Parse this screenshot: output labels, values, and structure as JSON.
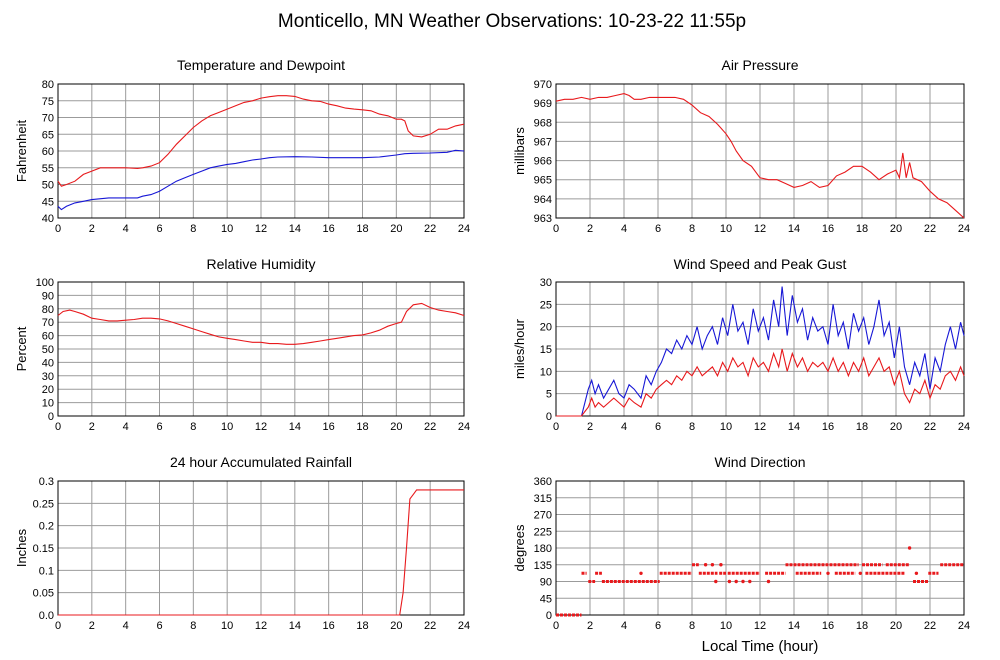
{
  "figure": {
    "title": "Monticello, MN Weather Observations: 10-23-22 11:55p",
    "xlabel": "Local Time (hour)"
  },
  "colors": {
    "red": "#e8191c",
    "blue": "#1717d6",
    "grid": "#9b9b9b",
    "frame": "#000000"
  },
  "chart_data": [
    {
      "id": "temp",
      "type": "line",
      "title": "Temperature and Dewpoint",
      "ylabel": "Fahrenheit",
      "xlim": [
        0,
        24
      ],
      "ylim": [
        40,
        80
      ],
      "xticks": [
        0,
        2,
        4,
        6,
        8,
        10,
        12,
        14,
        16,
        18,
        20,
        22,
        24
      ],
      "yticks": [
        40,
        45,
        50,
        55,
        60,
        65,
        70,
        75,
        80
      ],
      "grid": true,
      "legend": "none",
      "series": [
        {
          "color": "red",
          "x": [
            0,
            0.2,
            0.5,
            1,
            1.5,
            2,
            2.5,
            3,
            4,
            4.7,
            5,
            5.5,
            6,
            6.5,
            7,
            7.5,
            8,
            8.5,
            9,
            9.5,
            10,
            10.5,
            11,
            11.5,
            12,
            12.5,
            13,
            13.5,
            14,
            14.5,
            15,
            15.5,
            16,
            16.5,
            17,
            17.5,
            18,
            18.5,
            19,
            19.5,
            20,
            20.3,
            20.5,
            20.7,
            21,
            21.5,
            22,
            22.5,
            23,
            23.5,
            24
          ],
          "y": [
            51,
            49.5,
            50,
            51,
            53,
            54,
            55,
            55,
            55,
            54.8,
            55,
            55.5,
            56.5,
            59,
            62,
            64.5,
            67,
            69,
            70.5,
            71.5,
            72.5,
            73.5,
            74.5,
            75,
            75.8,
            76.2,
            76.5,
            76.5,
            76.3,
            75.5,
            75,
            74.8,
            74,
            73.5,
            72.8,
            72.5,
            72.3,
            72,
            71,
            70.5,
            69.5,
            69.5,
            69,
            66,
            64.5,
            64.2,
            65,
            66.5,
            66.5,
            67.5,
            68
          ]
        },
        {
          "color": "blue",
          "x": [
            0,
            0.2,
            0.5,
            1,
            1.5,
            2,
            3,
            4,
            4.7,
            5,
            5.5,
            6,
            6.5,
            7,
            7.5,
            8,
            8.5,
            9,
            9.5,
            10,
            10.5,
            11,
            11.5,
            12,
            12.5,
            13,
            14,
            15,
            16,
            17,
            18,
            19,
            20,
            20.5,
            21,
            22,
            23,
            23.5,
            24
          ],
          "y": [
            43.5,
            42.5,
            43.5,
            44.5,
            45,
            45.5,
            46,
            46,
            46,
            46.5,
            47,
            48,
            49.5,
            51,
            52,
            53,
            54,
            55,
            55.5,
            56,
            56.3,
            56.8,
            57.3,
            57.6,
            58,
            58.2,
            58.3,
            58.2,
            58,
            58,
            58,
            58.2,
            58.8,
            59.2,
            59.3,
            59.4,
            59.6,
            60.2,
            60
          ]
        }
      ]
    },
    {
      "id": "pressure",
      "type": "line",
      "title": "Air Pressure",
      "ylabel": "millibars",
      "xlim": [
        0,
        24
      ],
      "ylim": [
        963,
        970
      ],
      "xticks": [
        0,
        2,
        4,
        6,
        8,
        10,
        12,
        14,
        16,
        18,
        20,
        22,
        24
      ],
      "yticks": [
        963,
        964,
        965,
        966,
        967,
        968,
        969,
        970
      ],
      "grid": true,
      "legend": "none",
      "series": [
        {
          "color": "red",
          "x": [
            0,
            0.5,
            1,
            1.5,
            2,
            2.5,
            3,
            3.5,
            4,
            4.3,
            4.6,
            5,
            5.5,
            6,
            6.5,
            7,
            7.5,
            8,
            8.5,
            9,
            9.5,
            10,
            10.3,
            10.6,
            11,
            11.5,
            12,
            12.5,
            13,
            13.5,
            14,
            14.5,
            15,
            15.5,
            16,
            16.5,
            17,
            17.5,
            18,
            18.5,
            19,
            19.5,
            20,
            20.2,
            20.4,
            20.6,
            20.8,
            21,
            21.5,
            22,
            22.5,
            23,
            23.5,
            24
          ],
          "y": [
            969.1,
            969.2,
            969.2,
            969.3,
            969.2,
            969.3,
            969.3,
            969.4,
            969.5,
            969.4,
            969.2,
            969.2,
            969.3,
            969.3,
            969.3,
            969.3,
            969.2,
            968.9,
            968.5,
            968.3,
            967.9,
            967.4,
            967,
            966.5,
            966,
            965.7,
            965.1,
            965,
            965,
            964.8,
            964.6,
            964.7,
            964.9,
            964.6,
            964.7,
            965.2,
            965.4,
            965.7,
            965.7,
            965.4,
            965,
            965.3,
            965.5,
            965.1,
            966.4,
            965.1,
            965.9,
            965.1,
            964.9,
            964.4,
            964,
            963.8,
            963.4,
            963
          ]
        }
      ]
    },
    {
      "id": "rh",
      "type": "line",
      "title": "Relative Humidity",
      "ylabel": "Percent",
      "xlim": [
        0,
        24
      ],
      "ylim": [
        0,
        100
      ],
      "xticks": [
        0,
        2,
        4,
        6,
        8,
        10,
        12,
        14,
        16,
        18,
        20,
        22,
        24
      ],
      "yticks": [
        0,
        10,
        20,
        30,
        40,
        50,
        60,
        70,
        80,
        90,
        100
      ],
      "grid": true,
      "legend": "none",
      "series": [
        {
          "color": "red",
          "x": [
            0,
            0.3,
            0.7,
            1,
            1.5,
            2,
            2.5,
            3,
            3.5,
            4,
            4.5,
            5,
            5.5,
            6,
            6.5,
            7,
            7.5,
            8,
            8.5,
            9,
            9.5,
            10,
            10.5,
            11,
            11.5,
            12,
            12.5,
            13,
            13.5,
            14,
            14.5,
            15,
            15.5,
            16,
            16.5,
            17,
            17.5,
            18,
            18.5,
            19,
            19.5,
            20,
            20.3,
            20.6,
            21,
            21.5,
            22,
            22.5,
            23,
            23.5,
            24
          ],
          "y": [
            75,
            78,
            79,
            78,
            76,
            73,
            72,
            71,
            71,
            71.5,
            72,
            73,
            73,
            72.5,
            71,
            69,
            67,
            65,
            63,
            61,
            59,
            58,
            57,
            56,
            55,
            55,
            54,
            54,
            53.5,
            53.5,
            54,
            55,
            56,
            57,
            58,
            59,
            60,
            60.5,
            62,
            64,
            67,
            69,
            70,
            78,
            83,
            84,
            81,
            79,
            78,
            77,
            75
          ]
        }
      ]
    },
    {
      "id": "wind",
      "type": "line",
      "title": "Wind Speed and Peak Gust",
      "ylabel": "miles/hour",
      "xlim": [
        0,
        24
      ],
      "ylim": [
        0,
        30
      ],
      "xticks": [
        0,
        2,
        4,
        6,
        8,
        10,
        12,
        14,
        16,
        18,
        20,
        22,
        24
      ],
      "yticks": [
        0,
        5,
        10,
        15,
        20,
        25,
        30
      ],
      "grid": true,
      "legend": "none",
      "series": [
        {
          "color": "blue",
          "x": [
            0,
            1.5,
            1.7,
            1.9,
            2.1,
            2.3,
            2.5,
            2.8,
            3.1,
            3.4,
            3.7,
            4,
            4.3,
            4.6,
            5,
            5.3,
            5.6,
            5.9,
            6.2,
            6.5,
            6.8,
            7.1,
            7.4,
            7.7,
            8,
            8.3,
            8.6,
            8.9,
            9.2,
            9.5,
            9.8,
            10.1,
            10.4,
            10.7,
            11,
            11.3,
            11.6,
            11.9,
            12.2,
            12.5,
            12.8,
            13.1,
            13.3,
            13.6,
            13.9,
            14.2,
            14.5,
            14.8,
            15.1,
            15.4,
            15.7,
            16,
            16.3,
            16.6,
            16.9,
            17.2,
            17.5,
            17.8,
            18.1,
            18.4,
            18.7,
            19,
            19.3,
            19.6,
            19.9,
            20.2,
            20.5,
            20.8,
            21.1,
            21.4,
            21.7,
            22,
            22.3,
            22.6,
            22.9,
            23.2,
            23.5,
            23.8,
            24
          ],
          "y": [
            0,
            0,
            3,
            6,
            8,
            5,
            7,
            4,
            6,
            8,
            5,
            4,
            7,
            6,
            4,
            9,
            7,
            10,
            12,
            15,
            14,
            17,
            15,
            18,
            16,
            20,
            15,
            18,
            20,
            16,
            22,
            18,
            25,
            19,
            21,
            16,
            24,
            19,
            22,
            17,
            26,
            20,
            29,
            18,
            27,
            21,
            24,
            17,
            22,
            19,
            20,
            16,
            25,
            18,
            21,
            15,
            23,
            19,
            22,
            16,
            20,
            26,
            18,
            21,
            13,
            20,
            11,
            7,
            12,
            9,
            14,
            6,
            13,
            10,
            16,
            20,
            15,
            21,
            18
          ]
        },
        {
          "color": "red",
          "x": [
            0,
            1.5,
            1.7,
            1.9,
            2.1,
            2.3,
            2.5,
            2.8,
            3.1,
            3.4,
            3.7,
            4,
            4.3,
            4.6,
            5,
            5.3,
            5.6,
            5.9,
            6.2,
            6.5,
            6.8,
            7.1,
            7.4,
            7.7,
            8,
            8.3,
            8.6,
            8.9,
            9.2,
            9.5,
            9.8,
            10.1,
            10.4,
            10.7,
            11,
            11.3,
            11.6,
            11.9,
            12.2,
            12.5,
            12.8,
            13.1,
            13.3,
            13.6,
            13.9,
            14.2,
            14.5,
            14.8,
            15.1,
            15.4,
            15.7,
            16,
            16.3,
            16.6,
            16.9,
            17.2,
            17.5,
            17.8,
            18.1,
            18.4,
            18.7,
            19,
            19.3,
            19.6,
            19.9,
            20.2,
            20.5,
            20.8,
            21.1,
            21.4,
            21.7,
            22,
            22.3,
            22.6,
            22.9,
            23.2,
            23.5,
            23.8,
            24
          ],
          "y": [
            0,
            0,
            1,
            2,
            4,
            2,
            3,
            2,
            3,
            4,
            3,
            2,
            4,
            3,
            2,
            5,
            4,
            6,
            7,
            8,
            7,
            9,
            8,
            10,
            9,
            11,
            9,
            10,
            11,
            9,
            12,
            10,
            13,
            11,
            12,
            9,
            13,
            11,
            12,
            10,
            14,
            11,
            15,
            10,
            14,
            11,
            13,
            10,
            12,
            11,
            12,
            10,
            13,
            10,
            12,
            9,
            12,
            10,
            13,
            9,
            11,
            13,
            10,
            11,
            7,
            10,
            5,
            3,
            6,
            5,
            8,
            4,
            7,
            6,
            9,
            10,
            8,
            11,
            9
          ]
        }
      ]
    },
    {
      "id": "rain",
      "type": "line",
      "title": "24 hour Accumulated Rainfall",
      "ylabel": "Inches",
      "xlim": [
        0,
        24
      ],
      "ylim": [
        0,
        0.3
      ],
      "xticks": [
        0,
        2,
        4,
        6,
        8,
        10,
        12,
        14,
        16,
        18,
        20,
        22,
        24
      ],
      "yticks": [
        0.0,
        0.05,
        0.1,
        0.15,
        0.2,
        0.25,
        0.3
      ],
      "ytick_labels": [
        "0.0",
        "0.05",
        "0.1",
        "0.15",
        "0.2",
        "0.25",
        "0.3"
      ],
      "grid": true,
      "legend": "none",
      "series": [
        {
          "color": "red",
          "x": [
            0,
            20.2,
            20.4,
            20.6,
            20.8,
            21,
            21.2,
            24
          ],
          "y": [
            0,
            0,
            0.05,
            0.15,
            0.26,
            0.27,
            0.28,
            0.28
          ]
        }
      ]
    },
    {
      "id": "dir",
      "type": "scatter",
      "title": "Wind Direction",
      "ylabel": "degrees",
      "xlim": [
        0,
        24
      ],
      "ylim": [
        0,
        360
      ],
      "xticks": [
        0,
        2,
        4,
        6,
        8,
        10,
        12,
        14,
        16,
        18,
        20,
        22,
        24
      ],
      "yticks": [
        0,
        45,
        90,
        135,
        180,
        225,
        270,
        315,
        360
      ],
      "grid": true,
      "legend": "none",
      "segments": [
        {
          "x0": 0,
          "x1": 1.5,
          "y": 0
        },
        {
          "x0": 1.5,
          "x1": 1.8,
          "y": 112
        },
        {
          "x0": 1.9,
          "x1": 2.3,
          "y": 90
        },
        {
          "x0": 2.3,
          "x1": 2.7,
          "y": 112
        },
        {
          "x0": 2.7,
          "x1": 3.4,
          "y": 90
        },
        {
          "x0": 3.4,
          "x1": 6.1,
          "y": 90
        },
        {
          "x0": 6.1,
          "x1": 8.0,
          "y": 112
        },
        {
          "x0": 8.0,
          "x1": 8.4,
          "y": 135
        },
        {
          "x0": 8.4,
          "x1": 9.5,
          "y": 112
        },
        {
          "x0": 9.6,
          "x1": 10.0,
          "y": 112
        },
        {
          "x0": 10.1,
          "x1": 12.0,
          "y": 112
        },
        {
          "x0": 12.3,
          "x1": 13.5,
          "y": 112
        },
        {
          "x0": 13.5,
          "x1": 17.8,
          "y": 135
        },
        {
          "x0": 14.1,
          "x1": 15.6,
          "y": 112
        },
        {
          "x0": 16.4,
          "x1": 17.6,
          "y": 112
        },
        {
          "x0": 18.0,
          "x1": 19.2,
          "y": 135
        },
        {
          "x0": 18.2,
          "x1": 20.5,
          "y": 112
        },
        {
          "x0": 19.4,
          "x1": 20.8,
          "y": 135
        },
        {
          "x0": 21.0,
          "x1": 21.9,
          "y": 90
        },
        {
          "x0": 21.9,
          "x1": 22.5,
          "y": 112
        },
        {
          "x0": 22.6,
          "x1": 24.0,
          "y": 135
        }
      ],
      "points": [
        {
          "x": 5.0,
          "y": 112
        },
        {
          "x": 8.8,
          "y": 135
        },
        {
          "x": 9.2,
          "y": 135
        },
        {
          "x": 9.7,
          "y": 135
        },
        {
          "x": 9.4,
          "y": 90
        },
        {
          "x": 10.2,
          "y": 90
        },
        {
          "x": 10.6,
          "y": 90
        },
        {
          "x": 11.0,
          "y": 90
        },
        {
          "x": 11.4,
          "y": 90
        },
        {
          "x": 12.5,
          "y": 90
        },
        {
          "x": 16.0,
          "y": 112
        },
        {
          "x": 17.9,
          "y": 112
        },
        {
          "x": 20.8,
          "y": 180
        },
        {
          "x": 21.2,
          "y": 112
        }
      ]
    }
  ]
}
